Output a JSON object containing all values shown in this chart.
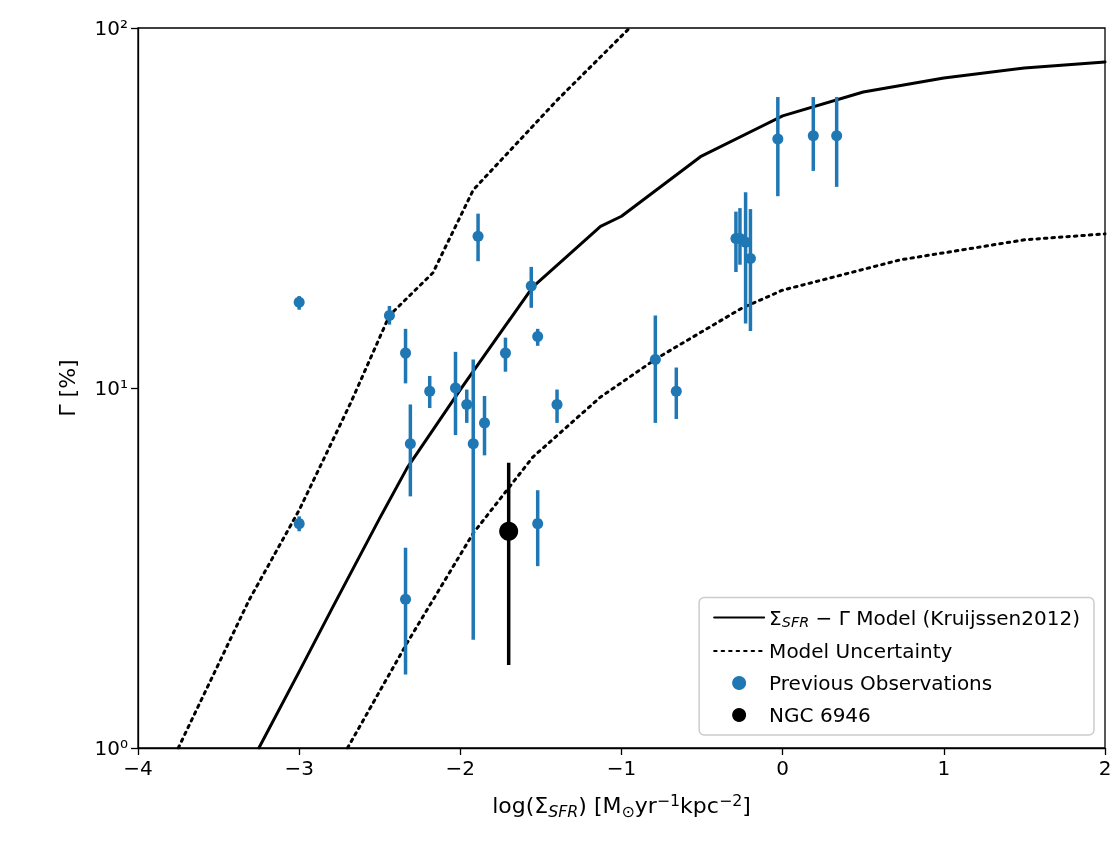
{
  "chart_data": {
    "type": "line",
    "xlabel": "log(Σ$_{SFR}$) [M$_{⊙}$yr$^{−1}$kpc$^{−2}$]",
    "ylabel": "Γ [%]",
    "xlim": [
      -4,
      2
    ],
    "xticks": [
      {
        "value": -4,
        "label": "−4"
      },
      {
        "value": -3,
        "label": "−3"
      },
      {
        "value": -2,
        "label": "−2"
      },
      {
        "value": -1,
        "label": "−1"
      },
      0,
      1,
      2
    ],
    "ylim": [
      1,
      100
    ],
    "yticks": [
      {
        "value": 1,
        "label": "10⁰"
      },
      {
        "value": 10,
        "label": "10¹"
      },
      {
        "value": 100,
        "label": "10²"
      }
    ],
    "log": "y",
    "grid": false,
    "legend": "bottom right",
    "series": [
      {
        "name": "Σ$_{SFR}$ − Γ Model (Kruijssen2012)",
        "color": "#000000",
        "line_style": "solid",
        "marker": "none",
        "x": [
          -3.25,
          -3,
          -2.79,
          -2.5,
          -2.33,
          -2,
          -1.55,
          -1.13,
          -1,
          -0.51,
          0,
          0.5,
          1,
          1.5,
          2
        ],
        "values": [
          1,
          1.63,
          2.47,
          4.35,
          6.0,
          9.9,
          19.1,
          28.1,
          30,
          43.9,
          57,
          66.4,
          72.6,
          77.4,
          80.5
        ]
      },
      {
        "name": "Model Uncertainty",
        "color": "#000000",
        "line_style": "dotted",
        "marker": "none",
        "x": [
          -3.75,
          -3.31,
          -3,
          -2.68,
          -2.44,
          -2.17,
          -1.92,
          -1.4,
          -0.95
        ],
        "values": [
          1,
          2.58,
          4.58,
          9.1,
          15.9,
          20.9,
          35.5,
          63,
          100
        ]
      },
      {
        "color": "#000000",
        "line_style": "dotted",
        "marker": "none",
        "x": [
          -2.7,
          -2.33,
          -1.92,
          -1.55,
          -1.13,
          -0.78,
          -0.25,
          0,
          0.73,
          1.5,
          2
        ],
        "values": [
          1,
          1.96,
          3.95,
          6.43,
          9.44,
          12.1,
          16.7,
          18.7,
          22.7,
          25.8,
          26.8
        ]
      },
      {
        "name": "Previous Observations",
        "type": "scatter",
        "color": "#1f77b4",
        "marker": "circle",
        "x": [
          -3.0,
          -3.0,
          -2.44,
          -2.34,
          -2.31,
          -2.34,
          -2.19,
          -2.03,
          -1.96,
          -1.92,
          -1.85,
          -1.89,
          -1.72,
          -1.56,
          -1.52,
          -1.4,
          -1.52,
          -0.79,
          -0.66,
          -0.03,
          0.19,
          0.335,
          -0.29,
          -0.265,
          -0.23,
          -0.2
        ],
        "values": [
          17.3,
          4.2,
          15.9,
          12.5,
          7.0,
          2.59,
          9.8,
          10.0,
          9.0,
          7.0,
          8.0,
          26.4,
          12.5,
          19.2,
          13.9,
          9.0,
          4.2,
          12.0,
          9.8,
          49.2,
          50.2,
          50.2,
          26.0,
          26.0,
          25.4,
          22.9
        ],
        "errors": [
          [
            16.5,
            18.0
          ],
          [
            4.0,
            4.4
          ],
          [
            15.0,
            16.9
          ],
          [
            10.3,
            14.6
          ],
          [
            5.0,
            9.0
          ],
          [
            1.6,
            3.6
          ],
          [
            8.8,
            10.8
          ],
          [
            7.4,
            12.6
          ],
          [
            8.0,
            9.9
          ],
          [
            2.0,
            12.0
          ],
          [
            6.5,
            9.5
          ],
          [
            22.5,
            30.5
          ],
          [
            11.1,
            13.8
          ],
          [
            16.7,
            21.7
          ],
          [
            13.1,
            14.6
          ],
          [
            8.0,
            9.9
          ],
          [
            3.2,
            5.2
          ],
          [
            8.0,
            15.9
          ],
          [
            8.2,
            11.4
          ],
          [
            34.1,
            64.3
          ],
          [
            40.1,
            64.3
          ],
          [
            36.2,
            64.3
          ],
          [
            21.0,
            30.9
          ],
          [
            22.0,
            31.6
          ],
          [
            15.1,
            35.0
          ],
          [
            14.4,
            31.4
          ]
        ]
      },
      {
        "name": "NGC 6946",
        "type": "scatter",
        "color": "#000000",
        "marker": "circle",
        "x": [
          -1.7
        ],
        "values": [
          4.0
        ],
        "errors": [
          [
            1.7,
            6.2
          ]
        ]
      }
    ]
  }
}
